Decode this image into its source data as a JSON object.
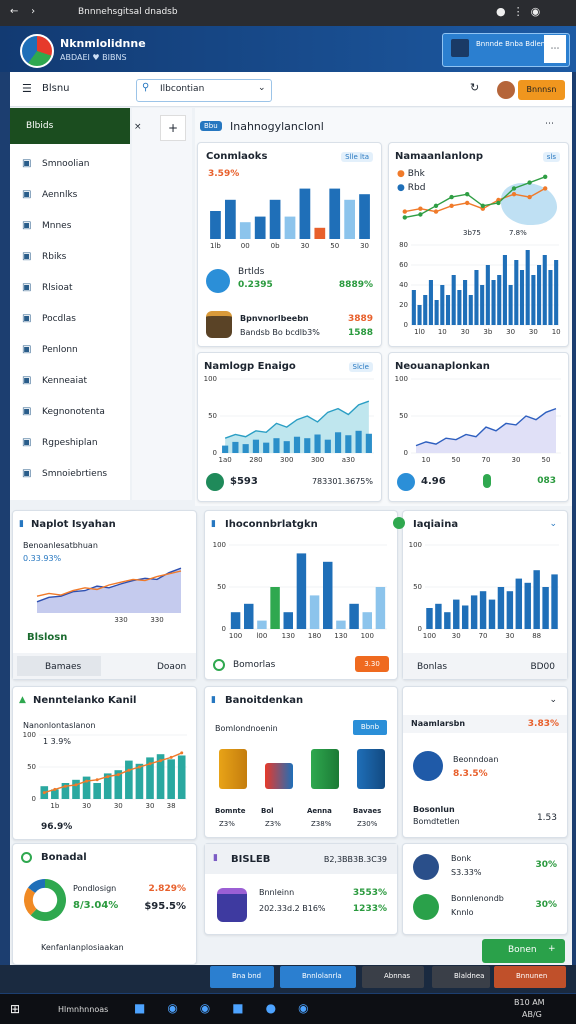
{
  "browser": {
    "tab_title": "Bnnnehsgitsal dnadsb"
  },
  "header": {
    "title": "Nknmlolidnne",
    "subtitle": "ABDAEI ♥ BIBNS",
    "promo": "Bnnnde Bnba Bdlenn"
  },
  "toolbar": {
    "menu": "Blsnu",
    "search": "Ilbcontian",
    "action": "Bnnnsn"
  },
  "sidebar": {
    "active": "Blbids",
    "items": [
      "Smnoolian",
      "Aennlks",
      "Mnnes",
      "Rbiks",
      "Rlsioat",
      "Pocdlas",
      "Penlonn",
      "Kenneaiat",
      "Kegnonotenta",
      "Rgpeshiplan",
      "Smnoiebrtiens"
    ]
  },
  "main": {
    "badge": "Bbu",
    "heading": "Inahnogylanclonl"
  },
  "cards": [
    {
      "title": "Conmlaoks",
      "badge": "Slle lta",
      "stat": "3.59%",
      "chart": {
        "type": "bar",
        "values": [
          5,
          7,
          3,
          4,
          7,
          4,
          9,
          2,
          9,
          7,
          8
        ],
        "colors": [
          "#1f6fb8",
          "#1f6fb8",
          "#8cc4ec",
          "#1f6fb8",
          "#1f6fb8",
          "#8cc4ec",
          "#1f6fb8",
          "#e8602c",
          "#1f6fb8",
          "#8cc4ec",
          "#1f6fb8"
        ],
        "ylim": [
          0,
          10
        ],
        "categories": [
          "1lb",
          null,
          "00",
          null,
          "0b",
          null,
          "30",
          null,
          "50",
          null,
          "30"
        ]
      },
      "row1_label": "Brtlds",
      "row1_value": "0.2395",
      "row1_right": "8889%",
      "row2_label": "Bpnvnorlbeebn",
      "row2_sub": "Bandsb Bo bcdlb3%",
      "row2_right": "3889",
      "row2_right_sub": "1588"
    },
    {
      "title": "Namaanlanlonp",
      "badge": "sls",
      "chart": {
        "type": "line",
        "ylim": [
          0,
          10
        ],
        "series": [
          {
            "name": "Bhk",
            "color": "#f07a2a",
            "values": [
              3,
              3.5,
              3,
              4,
              4.5,
              3.5,
              5,
              6,
              5.5,
              7
            ]
          },
          {
            "name": "Rbd",
            "color": "#2f9e44",
            "values": [
              2,
              2.5,
              4,
              5.5,
              6,
              4,
              4.5,
              7,
              8,
              9
            ]
          }
        ]
      },
      "note1": "3b75",
      "note2": "7.8%",
      "chart2": {
        "type": "bar",
        "color": "#1f6fb8",
        "ylim": [
          0,
          80
        ],
        "yticks": [
          0,
          20,
          40,
          60,
          80
        ],
        "values": [
          35,
          20,
          30,
          45,
          25,
          40,
          30,
          50,
          35,
          45,
          30,
          55,
          40,
          60,
          45,
          50,
          70,
          40,
          65,
          55,
          75,
          50,
          60,
          70,
          55,
          65
        ],
        "categories": [
          null,
          "1l0",
          null,
          null,
          null,
          "10",
          null,
          null,
          null,
          "30",
          null,
          null,
          null,
          "3b",
          null,
          null,
          null,
          "30",
          null,
          null,
          null,
          "30",
          null,
          null,
          null,
          "10"
        ]
      }
    },
    {
      "title": "Namlogp Enaigo",
      "badge": "Slcle",
      "stat": "$593",
      "stat_right": "783301.3675%",
      "chart": {
        "type": "area",
        "color": "#2a9ec4",
        "fill": "#bfe6ee",
        "ylim": [
          0,
          100
        ],
        "yticks": [
          0,
          50,
          100
        ],
        "values": [
          20,
          25,
          22,
          30,
          28,
          40,
          35,
          45,
          50,
          42,
          55,
          60,
          52,
          65,
          70
        ],
        "bar_values": [
          10,
          15,
          12,
          18,
          14,
          20,
          16,
          22,
          20,
          25,
          18,
          28,
          24,
          30,
          26
        ],
        "bar_color": "#2b8fc9",
        "categories": [
          "1a0",
          null,
          null,
          "280",
          null,
          null,
          "300",
          null,
          null,
          "300",
          null,
          null,
          "a30",
          null,
          null
        ]
      }
    },
    {
      "title": "Neouanaplonkan",
      "stat": "4.96",
      "stat_right": "083",
      "chart": {
        "type": "area",
        "color": "#2e5fbf",
        "fill": "#e0e0f7",
        "ylim": [
          0,
          100
        ],
        "yticks": [
          0,
          50,
          100
        ],
        "values": [
          10,
          15,
          12,
          20,
          18,
          25,
          22,
          35,
          30,
          40,
          38,
          50,
          45,
          55,
          60
        ],
        "categories": [
          null,
          "10",
          null,
          null,
          "50",
          null,
          null,
          "70",
          null,
          null,
          "30",
          null,
          null,
          "50",
          null
        ]
      }
    },
    {
      "title": "Naplot Isyahan",
      "subtitle": "Benoanlesatbhuan",
      "stat": "0.33.93%",
      "foot": "Blslosn",
      "tab1": "Bamaes",
      "tab2": "Doaon",
      "chart": {
        "type": "area",
        "ylim": [
          0,
          100
        ],
        "series": [
          {
            "color": "#2e4fb0",
            "fill": "#c5cbee",
            "values": [
              20,
              28,
              30,
              38,
              40,
              48,
              45,
              52,
              58,
              62,
              60,
              72,
              80
            ]
          },
          {
            "color": "#f07a2a",
            "values": [
              30,
              35,
              32,
              40,
              45,
              42,
              50,
              55,
              60,
              58,
              65,
              70,
              75
            ]
          }
        ],
        "categories": [
          null,
          null,
          null,
          null,
          null,
          null,
          null,
          "330",
          null,
          null,
          "330",
          null,
          null
        ]
      }
    },
    {
      "title": "Ihoconnbrlatgkn",
      "button": "3.30",
      "foot": "Bomorlas",
      "chart": {
        "type": "bar",
        "ylim": [
          0,
          100
        ],
        "yticks": [
          0,
          50,
          100
        ],
        "values": [
          20,
          30,
          10,
          50,
          20,
          90,
          40,
          80,
          10,
          30,
          20,
          50
        ],
        "colors": [
          "#1f6fb8",
          "#1f6fb8",
          "#8cc4ec",
          "#2fa84f",
          "#1f6fb8",
          "#1f6fb8",
          "#8cc4ec",
          "#1f6fb8",
          "#8cc4ec",
          "#1f6fb8",
          "#8cc4ec",
          "#8cc4ec"
        ],
        "categories": [
          "100",
          null,
          "l00",
          null,
          "130",
          null,
          "180",
          null,
          "130",
          null,
          "100",
          null
        ]
      }
    },
    {
      "title": "Iaqiaina",
      "foot": "Bonlas",
      "foot_right": "BD00",
      "chart": {
        "type": "bar",
        "color": "#1f6fb8",
        "ylim": [
          0,
          100
        ],
        "yticks": [
          0,
          50,
          100
        ],
        "values": [
          25,
          30,
          20,
          35,
          28,
          40,
          45,
          35,
          50,
          45,
          60,
          55,
          70,
          50,
          65
        ],
        "categories": [
          "100",
          null,
          null,
          "30",
          null,
          null,
          "70",
          null,
          null,
          "30",
          null,
          null,
          "88",
          null,
          null
        ]
      }
    },
    {
      "title": "Nenntelanko Kanil",
      "subtitle": "Nanonlontaslanon",
      "stat": "1 3.9%",
      "stat2": "96.9%",
      "chart": {
        "type": "bar",
        "color": "#2aa8a0",
        "ylim": [
          0,
          100
        ],
        "yticks": [
          0,
          50,
          100
        ],
        "values": [
          20,
          15,
          25,
          30,
          35,
          25,
          40,
          45,
          60,
          55,
          65,
          70,
          62,
          68
        ],
        "line_values": [
          10,
          15,
          20,
          22,
          28,
          30,
          35,
          38,
          45,
          50,
          55,
          60,
          65,
          72
        ],
        "line_color": "#f07a2a",
        "categories": [
          null,
          "1b",
          null,
          null,
          "30",
          null,
          null,
          "30",
          null,
          null,
          "30",
          null,
          "38",
          null
        ]
      }
    },
    {
      "title": "Bonadal",
      "label": "Pondlosign",
      "value": "8/3.04%",
      "right1": "2.829%",
      "right2": "$95.5%",
      "foot": "Kenfanlanplosiaakan",
      "chart": {
        "type": "pie",
        "values": [
          62,
          23,
          15
        ],
        "colors": [
          "#2fa84f",
          "#f08a24",
          "#1f6fb8"
        ]
      }
    },
    {
      "title": "Banoitdenkan",
      "subtitle": "Bomlondnoenin",
      "badge": "Bbnb",
      "items": [
        {
          "label": "Bomnte",
          "sub": "Z3%"
        },
        {
          "label": "Bol",
          "sub": "Z3%"
        },
        {
          "label": "Aenna",
          "sub": "Z38%"
        },
        {
          "label": "Bavaes",
          "sub": "Z30%"
        }
      ]
    },
    {
      "title": "BISLEB",
      "right": "B2,3BB3B.3C39",
      "label": "Bnnleinn",
      "sub": "202.33d.2 B16%",
      "v1": "3553%",
      "v2": "1233%"
    },
    {
      "title": "Naamlarsbn",
      "title_right": "3.83%",
      "label": "Beonndoan",
      "value": "8.3.5%",
      "label2": "Bosonlun",
      "sub2": "Bomdtetlen",
      "v2": "1.53"
    },
    {
      "rows": [
        {
          "label": "Bonk",
          "sub": "S3.33%",
          "value": "30%"
        },
        {
          "label": "Bonnlenondb",
          "sub": "Knnlo",
          "value": "30%"
        }
      ]
    }
  ],
  "action_button": "Bonen",
  "tabs": [
    "Bna bnd",
    "Bnnlolanrla",
    "Abnnas",
    "Blaldnea",
    "Bnnunen"
  ],
  "taskbar": {
    "search": "Hlmnhnnoas",
    "time": "B10 AM",
    "date": "AB/G"
  }
}
